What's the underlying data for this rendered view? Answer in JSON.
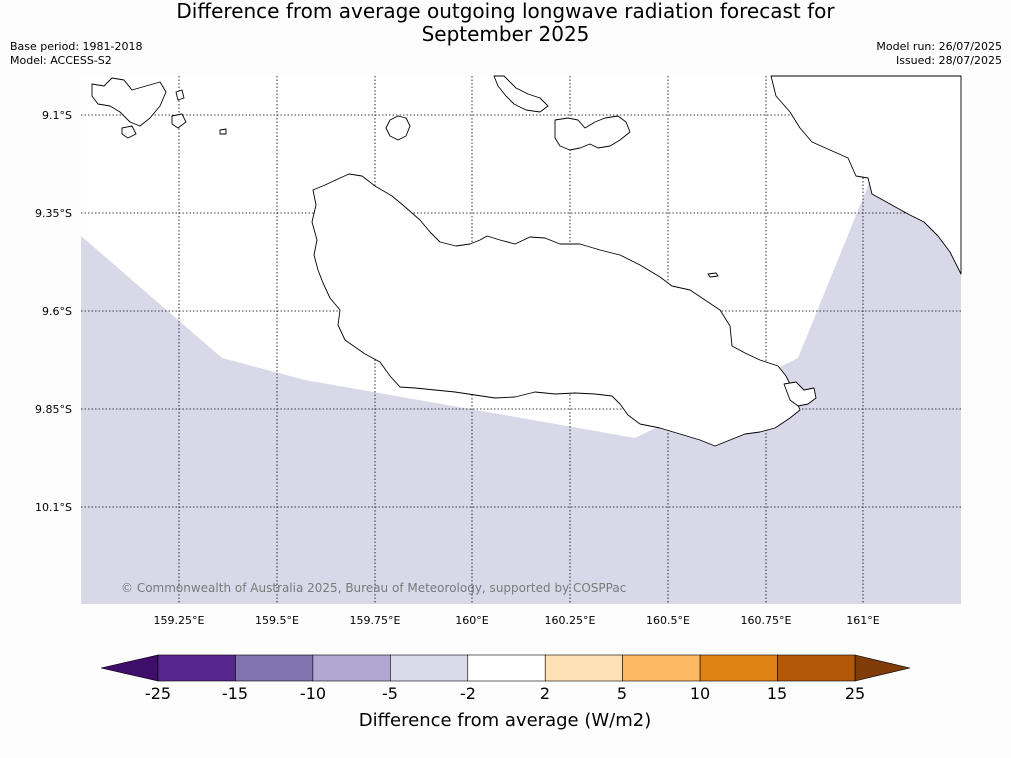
{
  "header": {
    "title_line1": "Difference from average outgoing longwave radiation forecast for",
    "title_line2": "September 2025",
    "base_period": "Base period: 1981-2018",
    "model": "Model: ACCESS-S2",
    "model_run": "Model run: 26/07/2025",
    "issued": "Issued: 28/07/2025"
  },
  "map": {
    "lat_labels": [
      "9.1°S",
      "9.35°S",
      "9.6°S",
      "9.85°S",
      "10.1°S"
    ],
    "lon_labels": [
      "159.25°E",
      "159.5°E",
      "159.75°E",
      "160°E",
      "160.25°E",
      "160.5°E",
      "160.75°E",
      "161°E"
    ],
    "copyright": "© Commonwealth of Australia 2025, Bureau of Meteorology, supported by COSPPac",
    "shaded_category": "-5 to -2",
    "colors": {
      "fill_minus5_minus2": "#d8d8e9",
      "land_fill": "#ffffff",
      "coast": "#000000",
      "grid": "#000000"
    }
  },
  "colorbar": {
    "title": "Difference from average (W/m2)",
    "tick_labels": [
      "-25",
      "-15",
      "-10",
      "-5",
      "-2",
      "2",
      "5",
      "10",
      "15",
      "25"
    ],
    "colors": [
      "#3f0d6a",
      "#58268f",
      "#8075ae",
      "#b0a8d2",
      "#dadaeb",
      "#ffffff",
      "#fee0b6",
      "#fdb863",
      "#e08214",
      "#b35806",
      "#7f3b08"
    ]
  }
}
